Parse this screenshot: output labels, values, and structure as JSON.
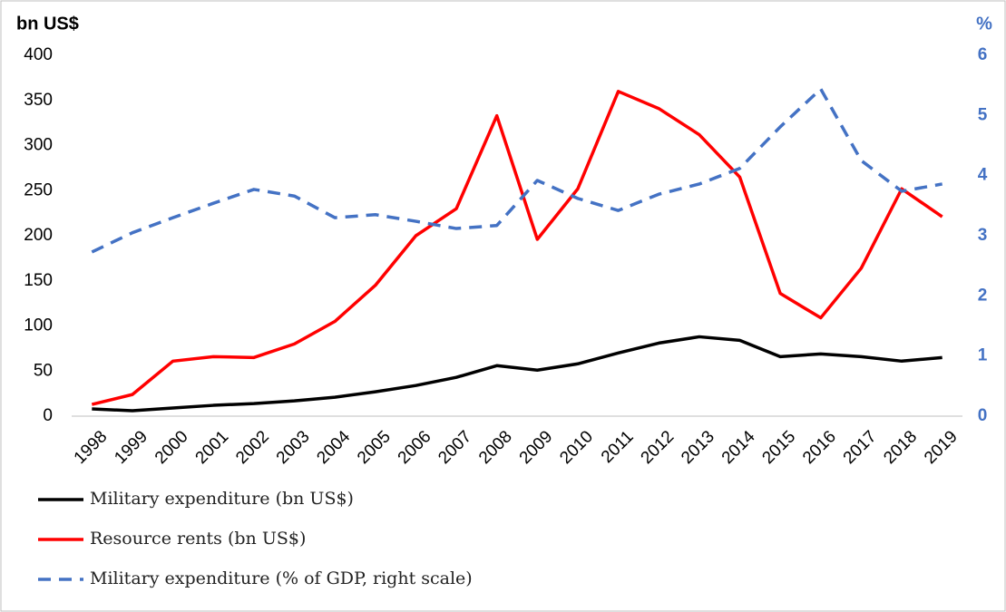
{
  "chart_data": {
    "type": "line",
    "y_label": "bn US$",
    "y2_label": "%",
    "categories": [
      "1998",
      "1999",
      "2000",
      "2001",
      "2002",
      "2003",
      "2004",
      "2005",
      "2006",
      "2007",
      "2008",
      "2009",
      "2010",
      "2011",
      "2012",
      "2013",
      "2014",
      "2015",
      "2016",
      "2017",
      "2018",
      "2019"
    ],
    "series": [
      {
        "name": "Military expenditure (bn US$)",
        "color": "#000000",
        "dash": false,
        "values": [
          8,
          6,
          9,
          12,
          14,
          17,
          21,
          27,
          34,
          43,
          56,
          51,
          58,
          70,
          81,
          88,
          84,
          66,
          69,
          66,
          61,
          65
        ]
      },
      {
        "name": "Resource rents (bn US$)",
        "color": "#ff0000",
        "dash": false,
        "values": [
          13,
          24,
          61,
          66,
          65,
          80,
          105,
          145,
          200,
          230,
          333,
          196,
          252,
          360,
          341,
          312,
          265,
          136,
          109,
          164,
          252,
          221
        ]
      },
      {
        "name": "Military expenditure (% of GDP, right scale)",
        "color": "#4472c4",
        "dash": true,
        "axis": "y2",
        "values": [
          2.73,
          3.05,
          3.3,
          3.54,
          3.77,
          3.66,
          3.3,
          3.35,
          3.24,
          3.12,
          3.17,
          3.92,
          3.62,
          3.42,
          3.69,
          3.86,
          4.12,
          4.81,
          5.44,
          4.25,
          3.74,
          3.86
        ]
      }
    ],
    "ylim": [
      0,
      400
    ],
    "yticks": [
      0,
      50,
      100,
      150,
      200,
      250,
      300,
      350,
      400
    ],
    "y2lim": [
      0,
      6
    ],
    "y2ticks": [
      0,
      1,
      2,
      3,
      4,
      5,
      6
    ],
    "grid": false,
    "legend": "bottom"
  }
}
